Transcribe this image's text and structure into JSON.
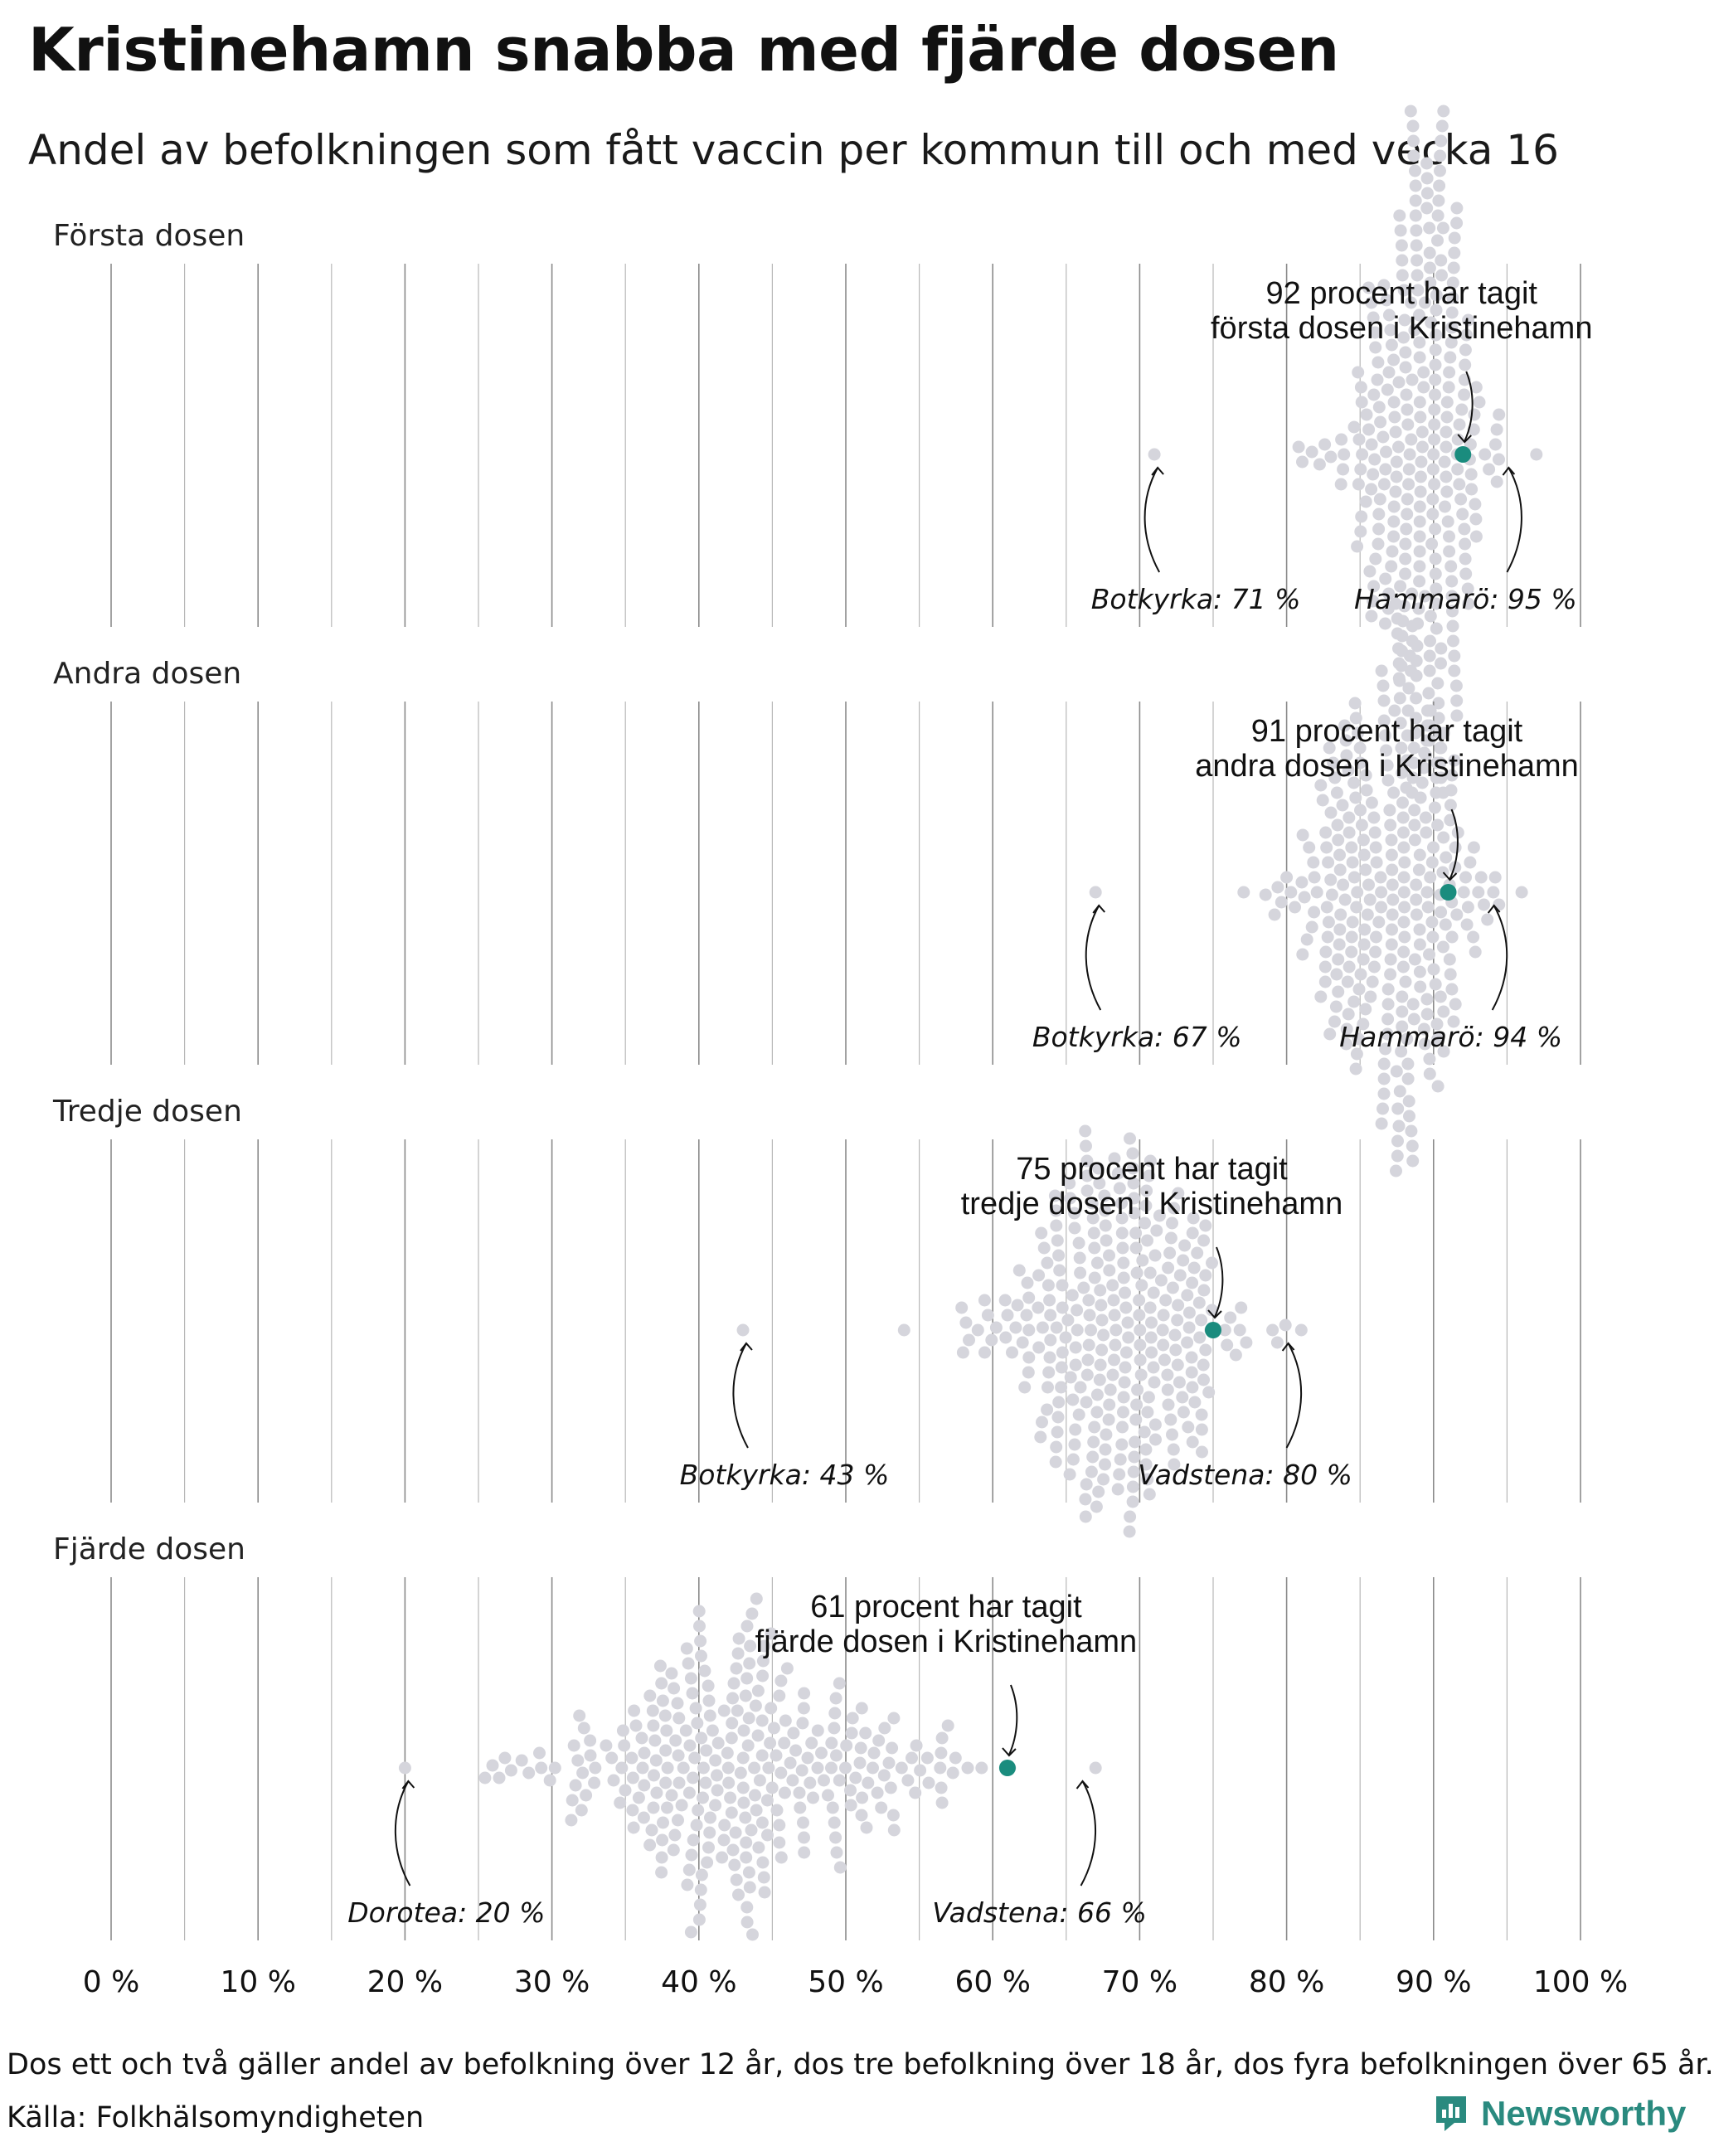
{
  "title": "Kristinehamn snabba med fjärde dosen",
  "subtitle": "Andel av befolkningen som fått vaccin per kommun till och med vecka 16",
  "footnote": "Dos ett och två gäller andel av befolkning över 12 år, dos tre befolkning över 18 år, dos fyra befolkningen över 65 år.",
  "source": "Källa: Folkhälsomyndigheten",
  "brand": "Newsworthy",
  "colors": {
    "dot": "#d5d5dc",
    "highlight": "#1a8c7e",
    "grid": "#999999",
    "brand": "#2a8a7f"
  },
  "chart_data": {
    "type": "scatter",
    "subtype": "beeswarm",
    "xlim": [
      0,
      100
    ],
    "x_ticks": [
      "0 %",
      "10 %",
      "20 %",
      "30 %",
      "40 %",
      "50 %",
      "60 %",
      "70 %",
      "80 %",
      "90 %",
      "100 %"
    ],
    "panels": [
      {
        "label": "Första dosen",
        "min": 71,
        "max": 97,
        "peak": 90,
        "sd_left": 3.0,
        "sd_right": 1.8,
        "count": 290,
        "highlight": {
          "value": 92,
          "label_lines": [
            "92 procent har tagit",
            "första dosen i Kristinehamn"
          ]
        },
        "extremes": [
          {
            "value": 71,
            "label": "Botkyrka: 71 %"
          },
          {
            "value": 95,
            "label": "Hammarö: 95 %"
          }
        ]
      },
      {
        "label": "Andra dosen",
        "min": 67,
        "max": 96,
        "peak": 88,
        "sd_left": 3.8,
        "sd_right": 2.3,
        "count": 290,
        "highlight": {
          "value": 91,
          "label_lines": [
            "91 procent har tagit",
            "andra dosen i Kristinehamn"
          ]
        },
        "extremes": [
          {
            "value": 67,
            "label": "Botkyrka: 67 %"
          },
          {
            "value": 94,
            "label": "Hammarö: 94 %"
          }
        ]
      },
      {
        "label": "Tredje dosen",
        "min": 43,
        "max": 81,
        "peak": 70,
        "sd_left": 5.5,
        "sd_right": 3.3,
        "count": 290,
        "highlight": {
          "value": 75,
          "label_lines": [
            "75 procent har tagit",
            "tredje dosen i Kristinehamn"
          ]
        },
        "extremes": [
          {
            "value": 43,
            "label": "Botkyrka: 43 %"
          },
          {
            "value": 80,
            "label": "Vadstena: 80 %"
          }
        ]
      },
      {
        "label": "Fjärde dosen",
        "min": 20,
        "max": 67,
        "peak": 42,
        "sd_left": 6.5,
        "sd_right": 7.0,
        "count": 290,
        "highlight": {
          "value": 61,
          "label_lines": [
            "61 procent har tagit",
            "fjärde dosen i Kristinehamn"
          ]
        },
        "extremes": [
          {
            "value": 20,
            "label": "Dorotea: 20 %"
          },
          {
            "value": 66,
            "label": "Vadstena: 66 %"
          }
        ]
      }
    ]
  }
}
